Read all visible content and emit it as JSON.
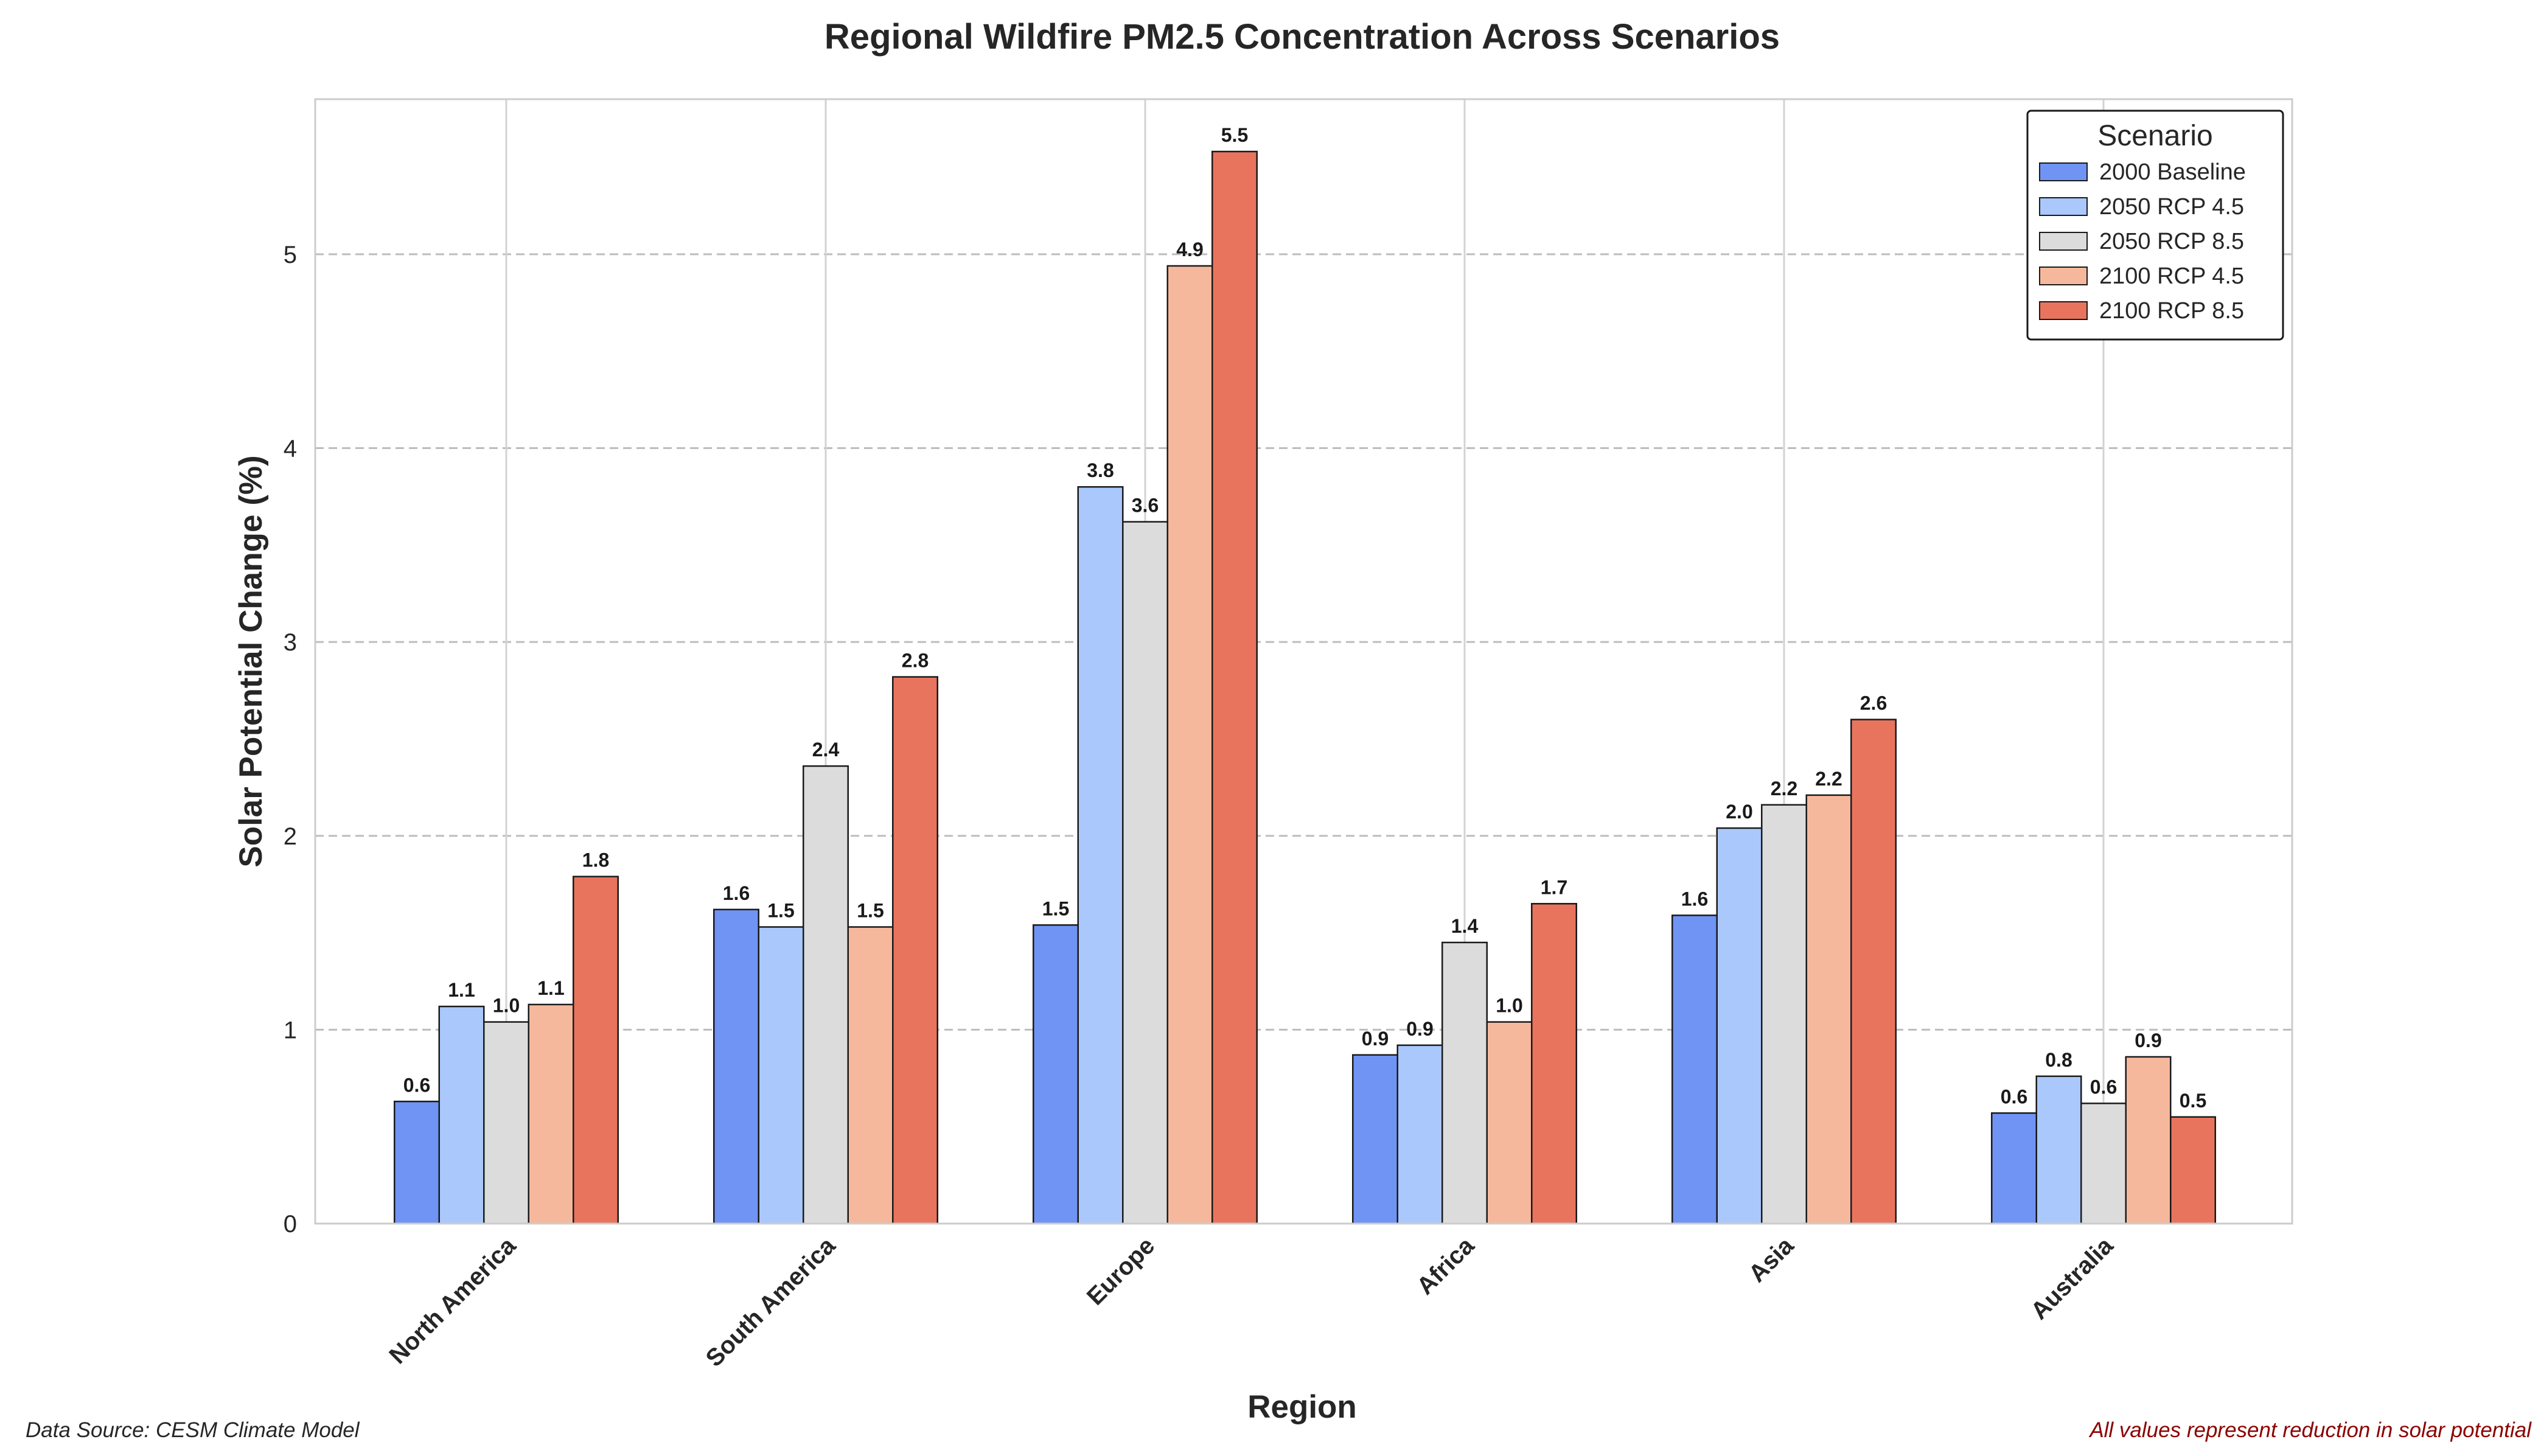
{
  "chart_data": {
    "type": "bar",
    "title": "Regional Wildfire PM2.5 Concentration Across Scenarios",
    "xlabel": "Region",
    "ylabel": "Solar Potential Change (%)",
    "categories": [
      "North America",
      "South America",
      "Europe",
      "Africa",
      "Asia",
      "Australia"
    ],
    "yticks": [
      "0",
      "1",
      "2",
      "3",
      "4",
      "5"
    ],
    "ylim": [
      0,
      5.8
    ],
    "grid": true,
    "legend": {
      "title": "Scenario",
      "placement": "top-right"
    },
    "series": [
      {
        "name": "2000 Baseline",
        "color": "#7094f4",
        "values": [
          0.63,
          1.62,
          1.54,
          0.87,
          1.59,
          0.57
        ],
        "labels": [
          "0.6",
          "1.6",
          "1.5",
          "0.9",
          "1.6",
          "0.6"
        ]
      },
      {
        "name": "2050 RCP 4.5",
        "color": "#aac8fc",
        "values": [
          1.12,
          1.53,
          3.8,
          0.92,
          2.04,
          0.76
        ],
        "labels": [
          "1.1",
          "1.5",
          "3.8",
          "0.9",
          "2.0",
          "0.8"
        ]
      },
      {
        "name": "2050 RCP 8.5",
        "color": "#dcdcdc",
        "values": [
          1.04,
          2.36,
          3.62,
          1.45,
          2.16,
          0.62
        ],
        "labels": [
          "1.0",
          "2.4",
          "3.6",
          "1.4",
          "2.2",
          "0.6"
        ]
      },
      {
        "name": "2100 RCP 4.5",
        "color": "#f6b89c",
        "values": [
          1.13,
          1.53,
          4.94,
          1.04,
          2.21,
          0.86
        ],
        "labels": [
          "1.1",
          "1.5",
          "4.9",
          "1.0",
          "2.2",
          "0.9"
        ]
      },
      {
        "name": "2100 RCP 8.5",
        "color": "#e8745e",
        "values": [
          1.79,
          2.82,
          5.53,
          1.65,
          2.6,
          0.55
        ],
        "labels": [
          "1.8",
          "2.8",
          "5.5",
          "1.7",
          "2.6",
          "0.5"
        ]
      }
    ]
  },
  "footer": {
    "source": "Data Source: CESM Climate Model",
    "note": "All values represent reduction in solar potential"
  }
}
